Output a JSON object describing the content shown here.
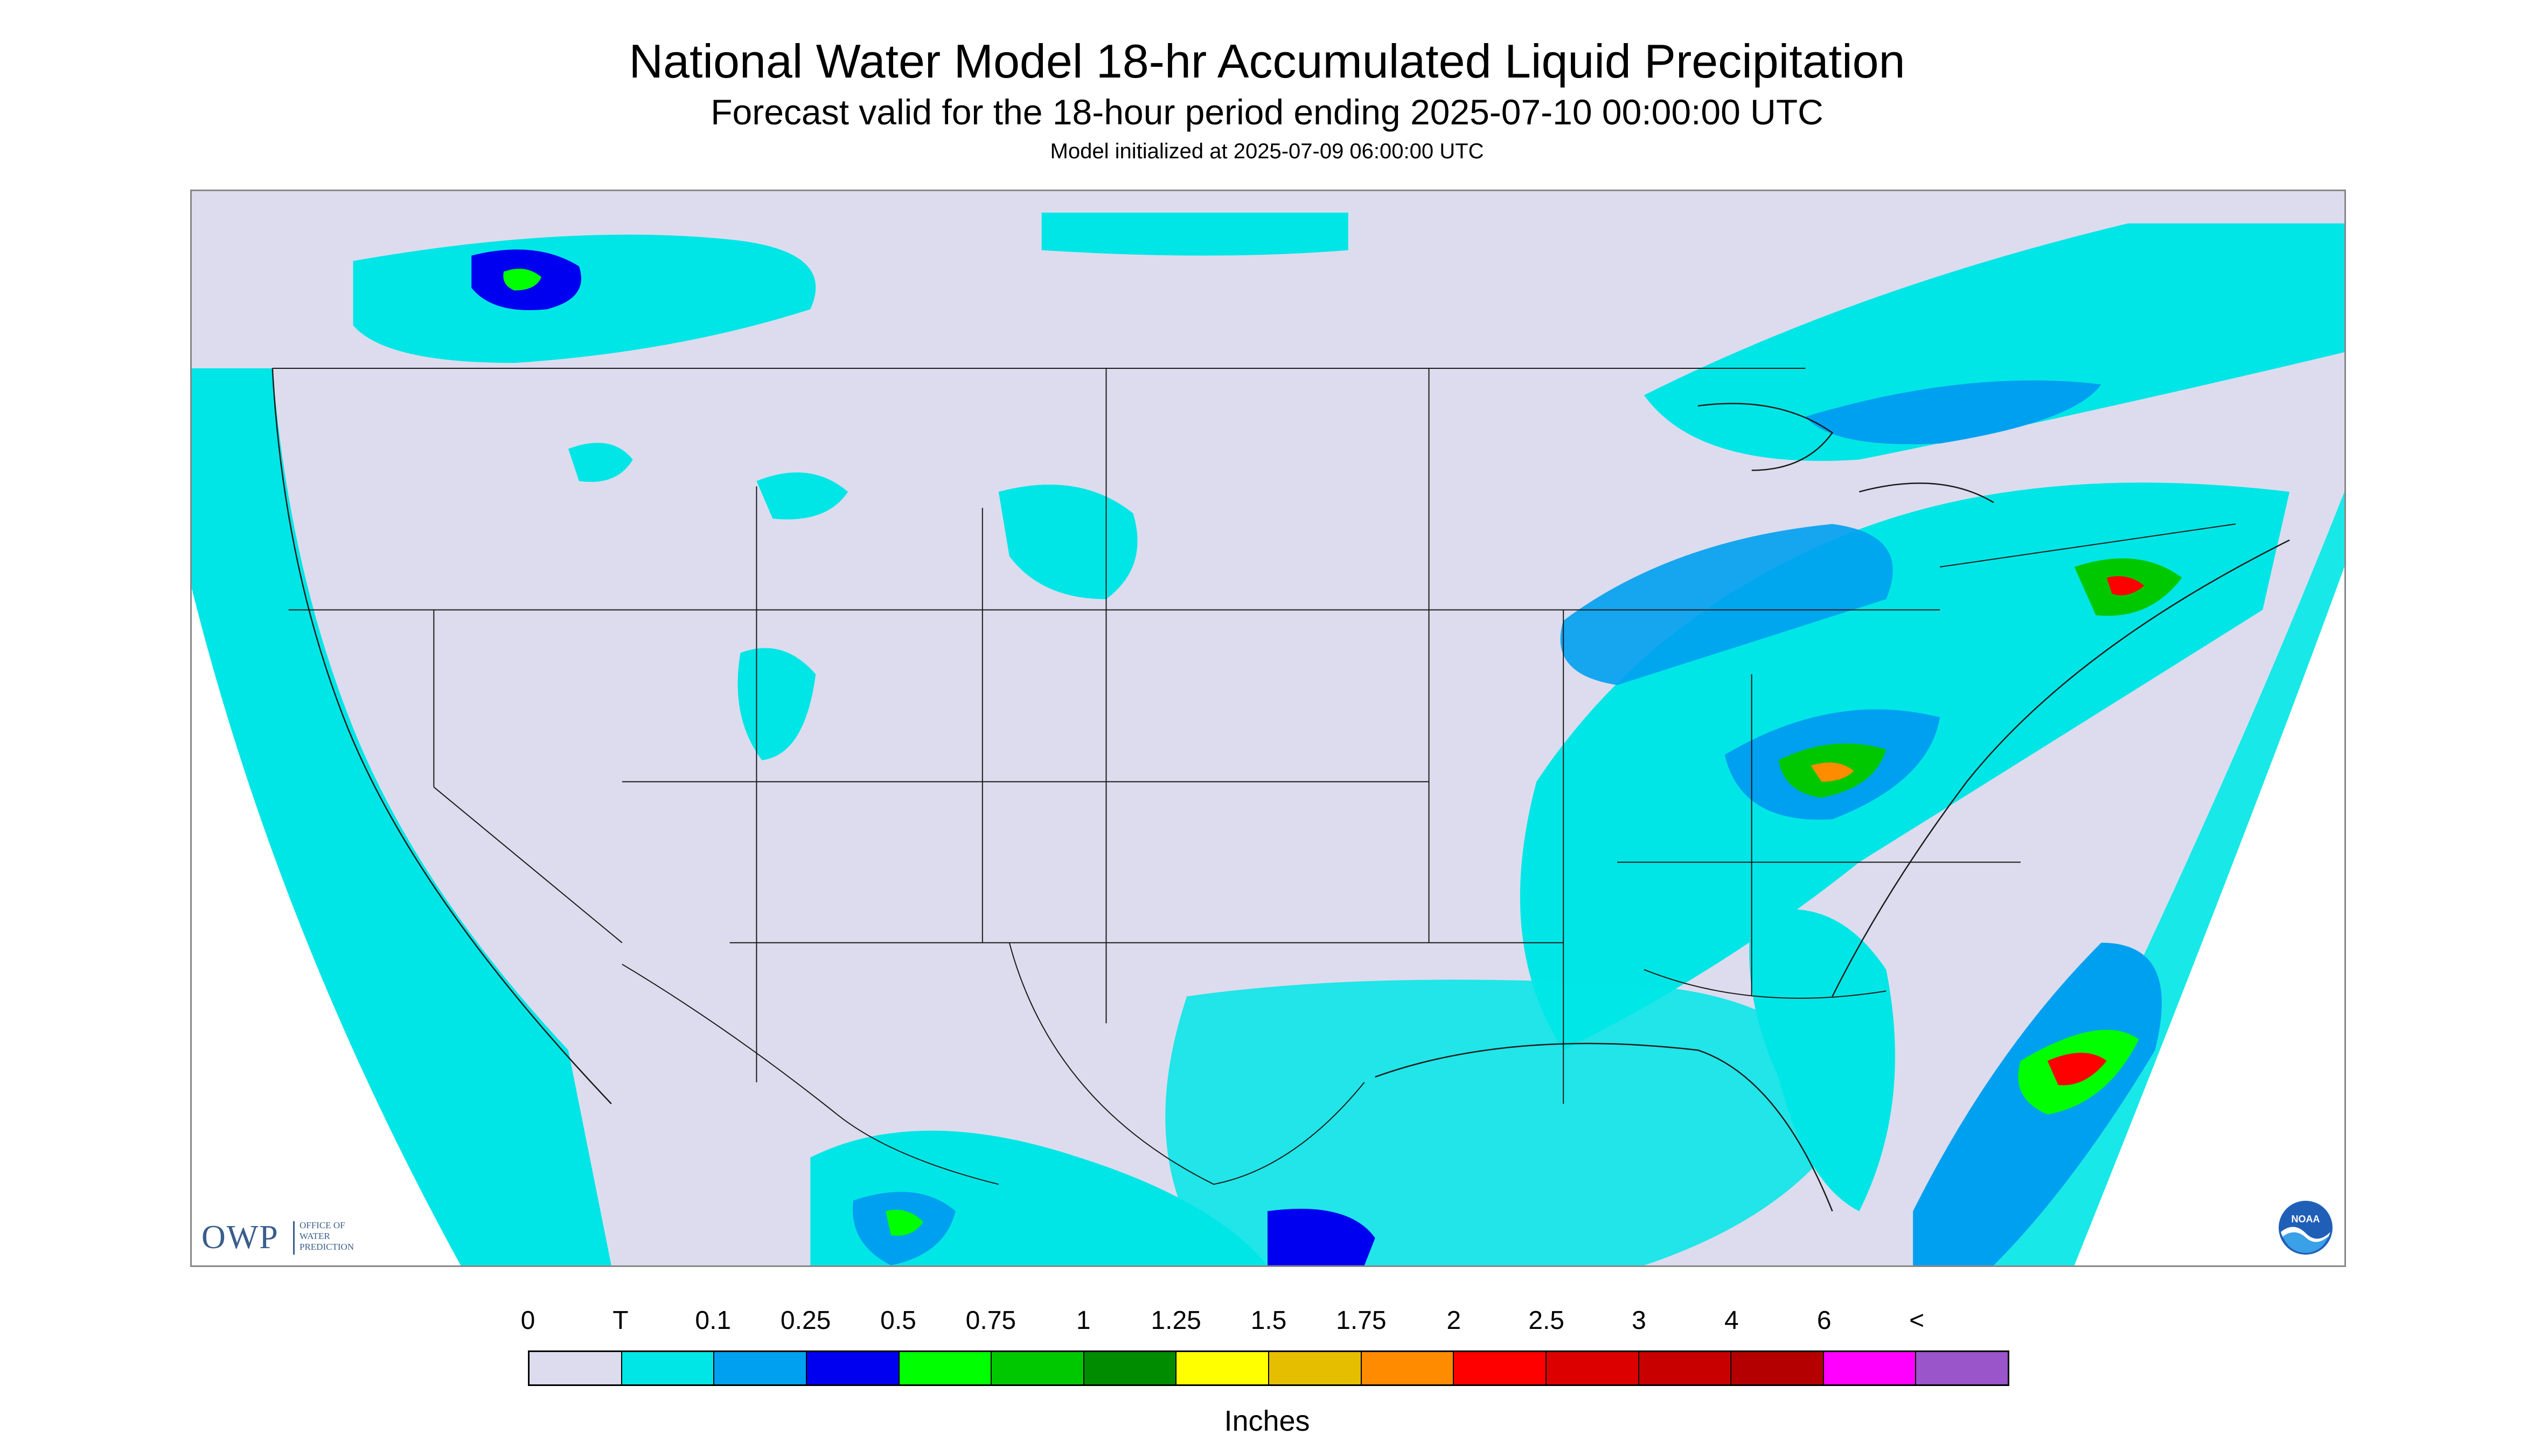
{
  "title": "National Water Model 18-hr Accumulated Liquid Precipitation",
  "subtitle": "Forecast valid for the 18-hour period ending 2025-07-10 00:00:00 UTC",
  "init_time": "Model initialized at 2025-07-09 06:00:00 UTC",
  "logos": {
    "owp_abbr": "OWP",
    "owp_text": "Office of Water Prediction",
    "noaa_text": "NOAA"
  },
  "legend": {
    "labels": [
      "0",
      "T",
      "0.1",
      "0.25",
      "0.5",
      "0.75",
      "1",
      "1.25",
      "1.5",
      "1.75",
      "2",
      "2.5",
      "3",
      "4",
      "6",
      "<"
    ],
    "colors": [
      "#dcdcee",
      "#00e6e6",
      "#00a0f0",
      "#0000f0",
      "#00ff00",
      "#00c800",
      "#008c00",
      "#ffff00",
      "#e6be00",
      "#ff8c00",
      "#ff0000",
      "#dc0000",
      "#c80000",
      "#b40000",
      "#ff00ff",
      "#9955c9"
    ],
    "units": "Inches"
  },
  "map": {
    "land_color": "#dcdcee",
    "light_precip_color": "#00e6e6",
    "moderate_precip_color": "#00a0f0",
    "heavy_precip_color": "#0000f0",
    "very_heavy_precip_color": "#00ff00",
    "extreme_precip_color": "#ff0000",
    "boundary_color": "#1a1a1a"
  }
}
